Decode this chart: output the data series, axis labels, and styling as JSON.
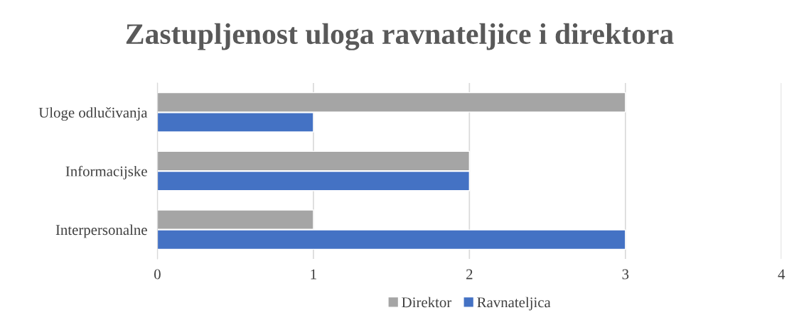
{
  "chart_data": {
    "type": "bar",
    "orientation": "horizontal",
    "title": "Zastupljenost uloga ravnateljice i direktora",
    "categories": [
      "Uloge odlučivanja",
      "Informacijske",
      "Interpersonalne"
    ],
    "series": [
      {
        "name": "Direktor",
        "color": "#a5a5a5",
        "values": [
          3,
          2,
          1
        ]
      },
      {
        "name": "Ravnateljica",
        "color": "#4472c4",
        "values": [
          1,
          2,
          3
        ]
      }
    ],
    "xlim": [
      0,
      4
    ],
    "xticks": [
      0,
      1,
      2,
      3,
      4
    ],
    "grid": "x",
    "legend": "bottom"
  }
}
